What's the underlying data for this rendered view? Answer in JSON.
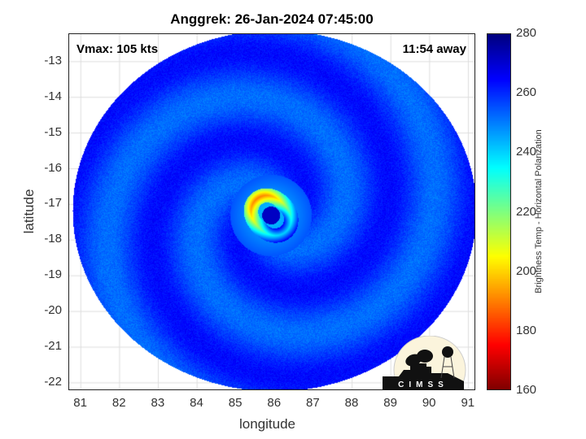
{
  "chart_data": {
    "type": "heatmap",
    "title": "Anggrek: 26-Jan-2024 07:45:00",
    "xlabel": "longitude",
    "ylabel": "latitude",
    "xlim": [
      80.7,
      91.2
    ],
    "ylim": [
      -22.23,
      -12.23
    ],
    "xticks": [
      81,
      82,
      83,
      84,
      85,
      86,
      87,
      88,
      89,
      90,
      91
    ],
    "yticks": [
      -13,
      -14,
      -15,
      -16,
      -17,
      -18,
      -19,
      -20,
      -21,
      -22
    ],
    "grid": true,
    "annotations": {
      "left": "Vmax: 105 kts",
      "right": "11:54 away"
    },
    "storm_center": {
      "lon": 85.9,
      "lat": -17.3
    },
    "colorbar": {
      "label": "Brightness Temp - Horizontal Polarization",
      "min": 160,
      "max": 280,
      "ticks": [
        280,
        260,
        240,
        220,
        200,
        180,
        160
      ],
      "colormap": "jet-reversed"
    }
  },
  "logo": {
    "text": "CIMSS"
  }
}
